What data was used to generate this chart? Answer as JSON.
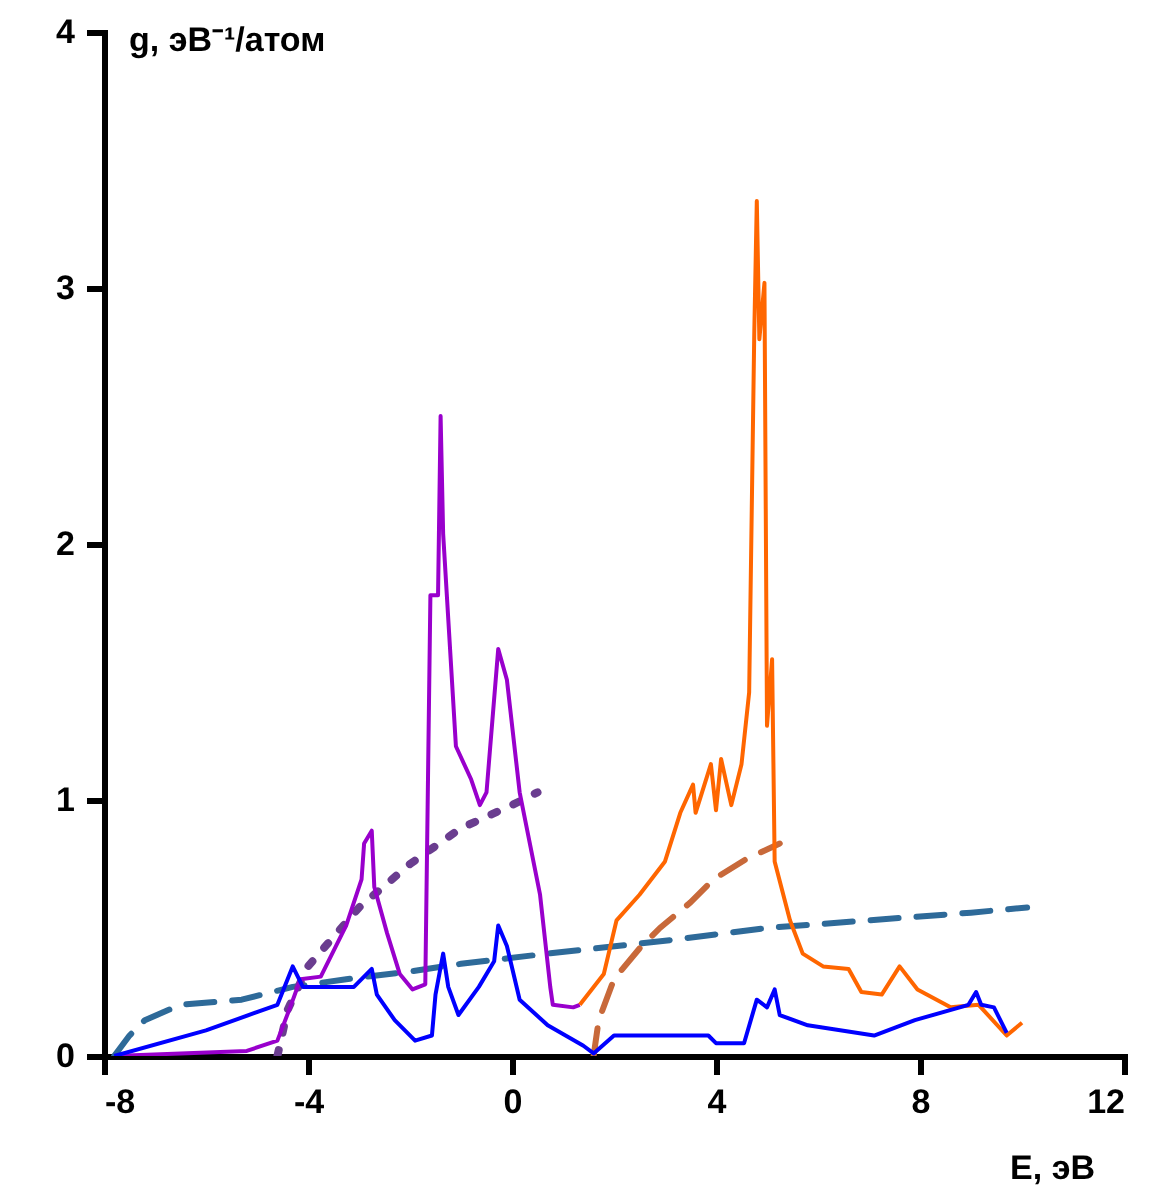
{
  "chart_data": {
    "type": "line",
    "xlabel": "E, эВ",
    "ylabel": "g, эВ⁻¹/атом",
    "xlim": [
      -8,
      12
    ],
    "ylim": [
      0,
      4
    ],
    "xticks": [
      -8,
      -4,
      0,
      4,
      8,
      12
    ],
    "yticks": [
      0,
      1,
      2,
      3,
      4
    ],
    "grid": false,
    "marker": "none",
    "series": [
      {
        "color": "#2e6a99",
        "line_style": "dashed",
        "x": [
          -7.8,
          -7.5,
          -7.2,
          -6.5,
          -5.3,
          -4.3,
          -3.25,
          -2,
          -1,
          0.7,
          3,
          5,
          7,
          9,
          10.1
        ],
        "values": [
          0,
          0.08,
          0.14,
          0.2,
          0.22,
          0.27,
          0.3,
          0.33,
          0.36,
          0.4,
          0.45,
          0.5,
          0.53,
          0.56,
          0.58
        ]
      },
      {
        "color": "#6a3d8f",
        "line_style": "dotted",
        "x": [
          -4.6,
          -4.4,
          -4.0,
          -3.0,
          -2.0,
          -1.0,
          0.0,
          0.5
        ],
        "values": [
          0,
          0.18,
          0.35,
          0.58,
          0.75,
          0.89,
          0.98,
          1.03
        ]
      },
      {
        "color": "#c8693a",
        "line_style": "dashed",
        "x": [
          1.6,
          1.7,
          2.0,
          2.5,
          2.9,
          3.5,
          3.95,
          4.6,
          5.25
        ],
        "values": [
          0,
          0.14,
          0.3,
          0.42,
          0.5,
          0.6,
          0.69,
          0.77,
          0.83
        ]
      },
      {
        "color": "#9900cc",
        "line_style": "solid",
        "x": [
          -7.8,
          -6.5,
          -5.2,
          -4.6,
          -4.35,
          -4.15,
          -3.75,
          -3.25,
          -2.95,
          -2.9,
          -2.75,
          -2.7,
          -2.45,
          -2.2,
          -1.95,
          -1.7,
          -1.6,
          -1.45,
          -1.4,
          -1.35,
          -1.1,
          -0.8,
          -0.63,
          -0.5,
          -0.27,
          -0.1,
          0.15,
          0.55,
          0.75,
          0.8,
          1.2,
          1.33
        ],
        "values": [
          0,
          0.01,
          0.02,
          0.06,
          0.19,
          0.3,
          0.31,
          0.51,
          0.69,
          0.83,
          0.88,
          0.66,
          0.48,
          0.32,
          0.26,
          0.28,
          1.8,
          1.8,
          2.5,
          2.04,
          1.21,
          1.08,
          0.98,
          1.03,
          1.59,
          1.47,
          1.03,
          0.63,
          0.27,
          0.2,
          0.19,
          0.2
        ]
      },
      {
        "color": "#ff6600",
        "line_style": "solid",
        "x": [
          1.33,
          1.8,
          2.05,
          2.5,
          3.0,
          3.3,
          3.55,
          3.6,
          3.9,
          4.0,
          4.1,
          4.3,
          4.5,
          4.65,
          4.75,
          4.8,
          4.85,
          4.95,
          5.0,
          5.1,
          5.15,
          5.45,
          5.7,
          6.1,
          6.6,
          6.85,
          7.25,
          7.6,
          7.95,
          8.6,
          9.15,
          9.7,
          10.0
        ],
        "values": [
          0.2,
          0.32,
          0.53,
          0.63,
          0.76,
          0.95,
          1.06,
          0.95,
          1.14,
          0.96,
          1.16,
          0.98,
          1.14,
          1.42,
          2.82,
          3.34,
          2.8,
          3.02,
          1.29,
          1.55,
          0.76,
          0.53,
          0.4,
          0.35,
          0.34,
          0.25,
          0.24,
          0.35,
          0.26,
          0.19,
          0.2,
          0.08,
          0.13
        ]
      },
      {
        "color": "#0000ff",
        "line_style": "solid",
        "x": [
          -7.8,
          -6,
          -4.6,
          -4.3,
          -4.1,
          -3.1,
          -2.75,
          -2.65,
          -2.3,
          -1.9,
          -1.57,
          -1.5,
          -1.35,
          -1.25,
          -1.05,
          -0.65,
          -0.35,
          -0.27,
          -0.1,
          0.15,
          0.7,
          1.4,
          1.6,
          2.0,
          3.85,
          4.0,
          4.55,
          4.8,
          5.0,
          5.15,
          5.25,
          5.8,
          7.1,
          7.9,
          8.95,
          9.1,
          9.2,
          9.45,
          9.7
        ],
        "values": [
          0,
          0.1,
          0.2,
          0.35,
          0.27,
          0.27,
          0.34,
          0.24,
          0.14,
          0.06,
          0.08,
          0.24,
          0.4,
          0.27,
          0.16,
          0.27,
          0.37,
          0.51,
          0.43,
          0.22,
          0.12,
          0.04,
          0.01,
          0.08,
          0.08,
          0.05,
          0.05,
          0.22,
          0.19,
          0.26,
          0.16,
          0.12,
          0.08,
          0.14,
          0.2,
          0.25,
          0.2,
          0.19,
          0.09
        ]
      }
    ]
  }
}
